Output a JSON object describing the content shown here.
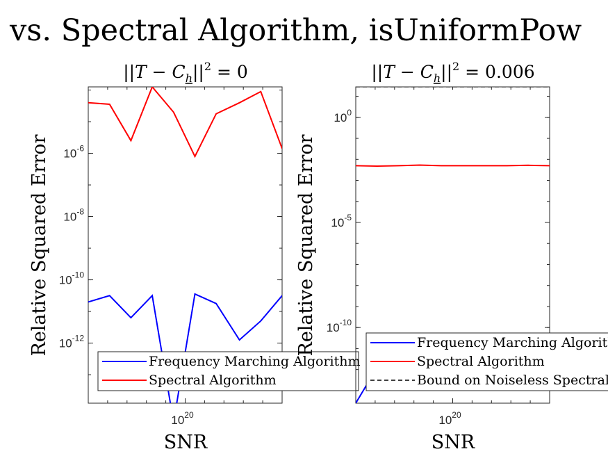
{
  "figure": {
    "suptitle": "vs. Spectral Algorithm, isUniformPow"
  },
  "chart_data": [
    {
      "type": "line",
      "title": "||T − C_h||² = 0",
      "title_parts": {
        "lhs": "||T − C",
        "sub": "h",
        "mid": "||",
        "sup": "2",
        "rhs": " = 0"
      },
      "xlabel": "SNR",
      "ylabel": "Relative Squared Error",
      "x_scale": "log",
      "y_scale": "log",
      "x_tick_labels": [
        {
          "base": "10",
          "exp": "20"
        }
      ],
      "y_ticks": [
        {
          "exp": -6,
          "base": "10",
          "label": "-6"
        },
        {
          "exp": -8,
          "base": "10",
          "label": "-8"
        },
        {
          "exp": -10,
          "base": "10",
          "label": "-10"
        },
        {
          "exp": -12,
          "base": "10",
          "label": "-12"
        }
      ],
      "xlim_log10": [
        15,
        25
      ],
      "ylim_log10": [
        -13.9,
        -3.9
      ],
      "series": [
        {
          "name": "Frequency Marching Algorithm",
          "color": "#0000ff",
          "x_log10": [
            15,
            16.1,
            17.2,
            18.3,
            19.4,
            20.5,
            21.6,
            22.8,
            23.9,
            25
          ],
          "y_log10": [
            -10.7,
            -10.5,
            -11.2,
            -10.5,
            -14.5,
            -10.45,
            -10.75,
            -11.9,
            -11.3,
            -10.5
          ]
        },
        {
          "name": "Spectral Algorithm",
          "color": "#ff0000",
          "x_log10": [
            15,
            16.1,
            17.2,
            18.3,
            19.4,
            20.5,
            21.6,
            22.8,
            23.9,
            25
          ],
          "y_log10": [
            -4.4,
            -4.45,
            -5.6,
            -3.9,
            -4.7,
            -6.1,
            -4.75,
            -4.4,
            -4.05,
            -5.85
          ]
        }
      ],
      "legend": {
        "position": "bottom-right",
        "entries": [
          {
            "label": "Frequency Marching Algorithm",
            "color": "#0000ff",
            "style": "solid"
          },
          {
            "label": "Spectral Algorithm",
            "color": "#ff0000",
            "style": "solid"
          }
        ]
      },
      "grid": false
    },
    {
      "type": "line",
      "title": "||T − C_h||² = 0.006",
      "title_parts": {
        "lhs": "||T − C",
        "sub": "h",
        "mid": "||",
        "sup": "2",
        "rhs": " = 0.006"
      },
      "xlabel": "SNR",
      "ylabel": "Relative Squared Error",
      "x_scale": "log",
      "y_scale": "log",
      "x_tick_labels": [
        {
          "base": "10",
          "exp": "20"
        }
      ],
      "y_ticks": [
        {
          "exp": 0,
          "base": "10",
          "label": "0"
        },
        {
          "exp": -5,
          "base": "10",
          "label": "-5"
        },
        {
          "exp": -10,
          "base": "10",
          "label": "-10"
        }
      ],
      "xlim_log10": [
        15,
        25
      ],
      "ylim_log10": [
        -13.6,
        1.45
      ],
      "series": [
        {
          "name": "Frequency Marching Algorithm",
          "color": "#0000ff",
          "x_log10": [
            15,
            16.1,
            17.2,
            18.3,
            19.4,
            20.5,
            21.6,
            22.8,
            23.9,
            25
          ],
          "y_log10": [
            -13.6,
            -11.9,
            -10.5,
            -10.7,
            -10.6,
            -10.9,
            -10.6,
            -10.8,
            -10.7,
            -10.6
          ]
        },
        {
          "name": "Spectral Algorithm",
          "color": "#ff0000",
          "x_log10": [
            15,
            16.1,
            17.2,
            18.3,
            19.4,
            20.5,
            21.6,
            22.8,
            23.9,
            25
          ],
          "y_log10": [
            -2.3,
            -2.32,
            -2.3,
            -2.27,
            -2.3,
            -2.3,
            -2.3,
            -2.3,
            -2.28,
            -2.3
          ]
        },
        {
          "name": "Bound on Noiseless Spectral",
          "color": "#404040",
          "dashed": true,
          "x_log10": [
            15,
            25
          ],
          "y_log10": [
            1.45,
            1.45
          ]
        }
      ],
      "legend": {
        "position": "bottom-right",
        "entries": [
          {
            "label": "Frequency Marching Algorithm",
            "color": "#0000ff",
            "style": "solid"
          },
          {
            "label": "Spectral Algorithm",
            "color": "#ff0000",
            "style": "solid"
          },
          {
            "label": "Bound on Noiseless Spectral",
            "color": "#404040",
            "style": "dashed"
          }
        ]
      },
      "grid": false
    }
  ]
}
